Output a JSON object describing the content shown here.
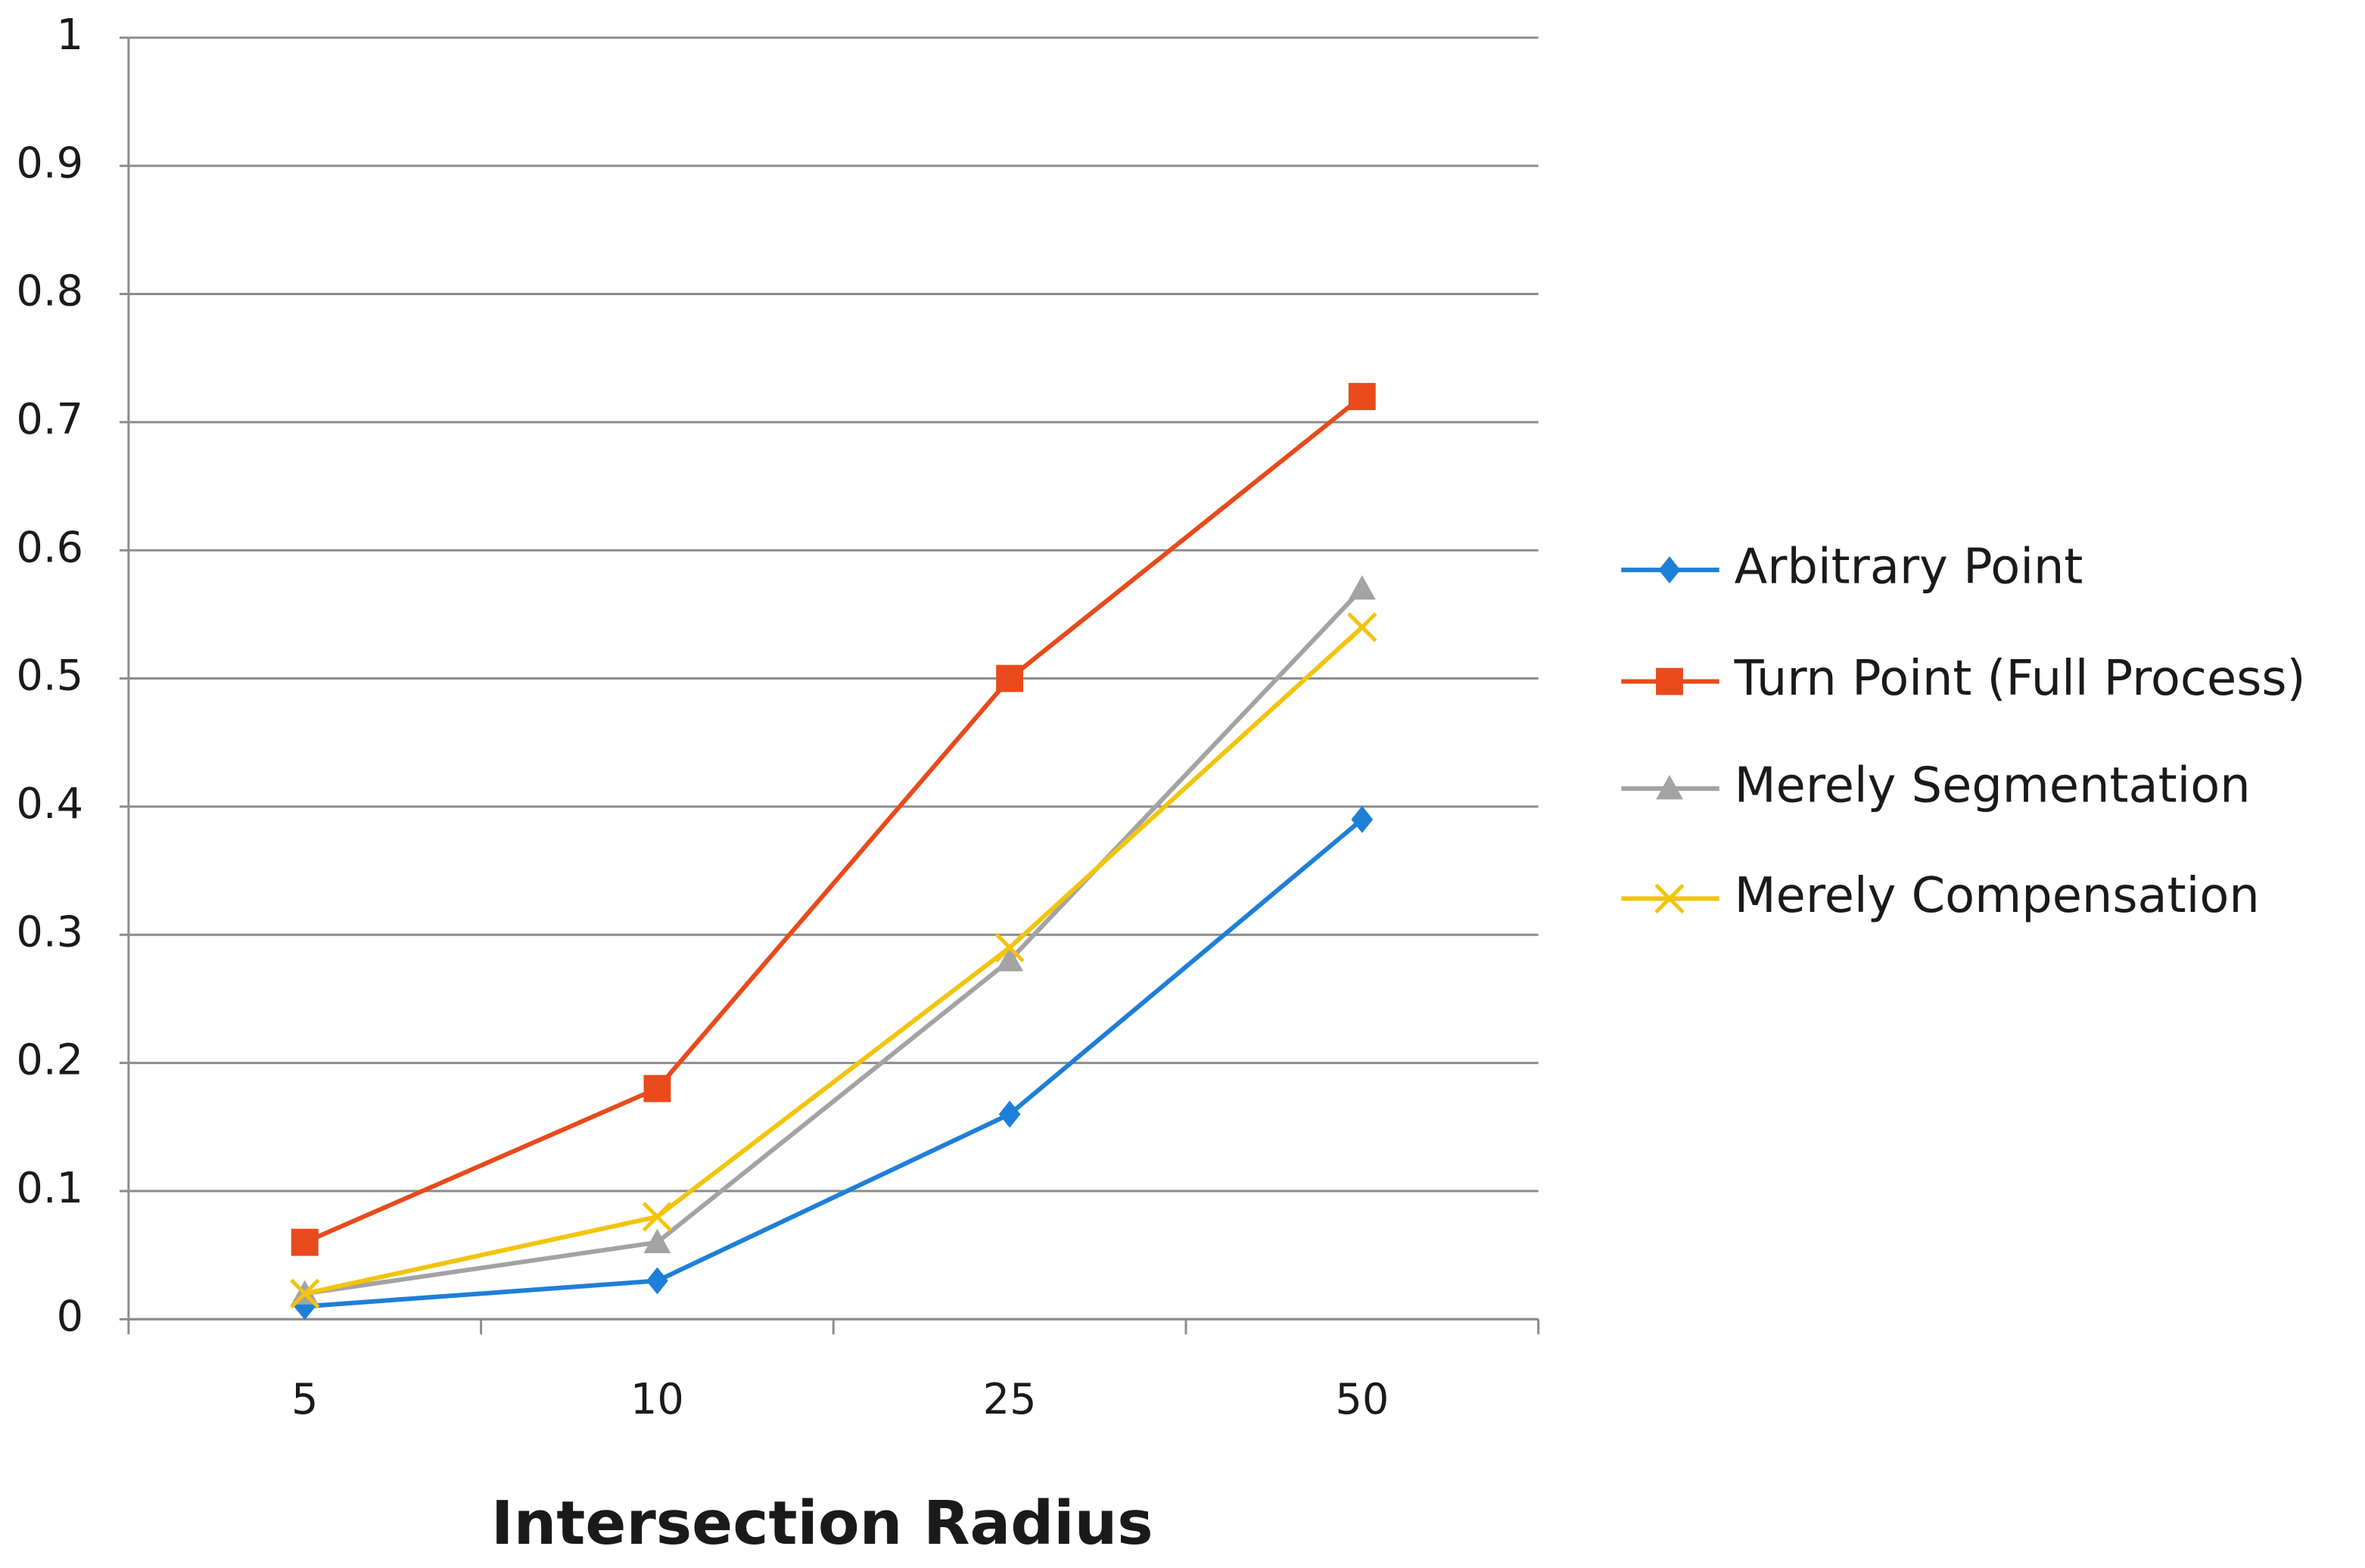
{
  "chart_data": {
    "type": "line",
    "x_label": "Intersection  Radius",
    "categories": [
      "5",
      "10",
      "25",
      "50"
    ],
    "ylim": [
      0,
      1
    ],
    "yticks": [
      0,
      0.1,
      0.2,
      0.3,
      0.4,
      0.5,
      0.6,
      0.7,
      0.8,
      0.9,
      1
    ],
    "grid": true,
    "legend_position": "right",
    "series": [
      {
        "name": "Arbitrary Point",
        "color": "#1e7fd8",
        "marker": "diamond",
        "values": [
          0.01,
          0.03,
          0.16,
          0.39
        ]
      },
      {
        "name": "Turn Point (Full Process)",
        "color": "#e84a1c",
        "marker": "square",
        "values": [
          0.06,
          0.18,
          0.5,
          0.72
        ]
      },
      {
        "name": "Merely Segmentation",
        "color": "#a3a3a3",
        "marker": "triangle",
        "values": [
          0.02,
          0.06,
          0.28,
          0.57
        ]
      },
      {
        "name": "Merely Compensation",
        "color": "#f2c40c",
        "marker": "x",
        "values": [
          0.02,
          0.08,
          0.29,
          0.54
        ]
      }
    ]
  }
}
